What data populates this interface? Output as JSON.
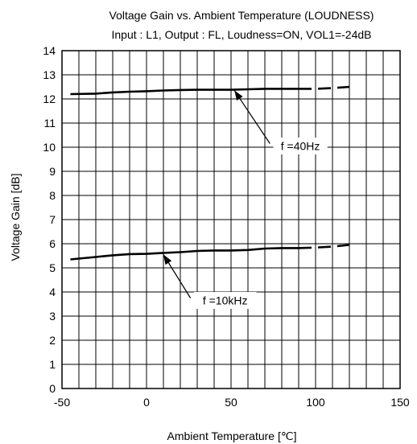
{
  "chart_data": {
    "type": "line",
    "title": "Voltage Gain vs. Ambient Temperature (LOUDNESS)",
    "subtitle": "Input : L1, Output : FL, Loudness=ON, VOL1=-24dB",
    "xlabel": "Ambient Temperature [℃]",
    "ylabel": "Voltage Gain [dB]",
    "xlim": [
      -50,
      150
    ],
    "ylim": [
      0,
      14
    ],
    "x_ticks": [
      -50,
      0,
      50,
      100,
      150
    ],
    "y_ticks": [
      0,
      1,
      2,
      3,
      4,
      5,
      6,
      7,
      8,
      9,
      10,
      11,
      12,
      13,
      14
    ],
    "x_minor_step": 10,
    "grid": true,
    "series": [
      {
        "name": "f =40Hz",
        "x": [
          -45,
          -30,
          -20,
          -10,
          0,
          10,
          20,
          30,
          40,
          50,
          60,
          70,
          80,
          90
        ],
        "y": [
          12.2,
          12.22,
          12.27,
          12.3,
          12.32,
          12.35,
          12.37,
          12.38,
          12.38,
          12.38,
          12.4,
          12.42,
          12.42,
          12.42
        ],
        "dashed_x": [
          90,
          100,
          110,
          120
        ],
        "dashed_y": [
          12.42,
          12.42,
          12.45,
          12.5
        ]
      },
      {
        "name": "f =10kHz",
        "x": [
          -45,
          -30,
          -20,
          -10,
          0,
          10,
          20,
          30,
          40,
          50,
          60,
          70,
          80,
          90
        ],
        "y": [
          5.35,
          5.45,
          5.52,
          5.57,
          5.58,
          5.62,
          5.65,
          5.7,
          5.72,
          5.72,
          5.74,
          5.8,
          5.82,
          5.82
        ],
        "dashed_x": [
          90,
          100,
          110,
          120
        ],
        "dashed_y": [
          5.82,
          5.84,
          5.88,
          5.95
        ]
      }
    ],
    "annotations": [
      {
        "text": "f =40Hz",
        "box_x": [
          75,
          107
        ],
        "box_y": [
          9.7,
          10.4
        ],
        "arrow_from": [
          73,
          10.15
        ],
        "arrow_to": [
          52,
          12.35
        ]
      },
      {
        "text": "f =10kHz",
        "box_x": [
          28,
          65
        ],
        "box_y": [
          3.3,
          4.0
        ],
        "arrow_from": [
          26,
          3.75
        ],
        "arrow_to": [
          10,
          5.55
        ]
      }
    ]
  }
}
